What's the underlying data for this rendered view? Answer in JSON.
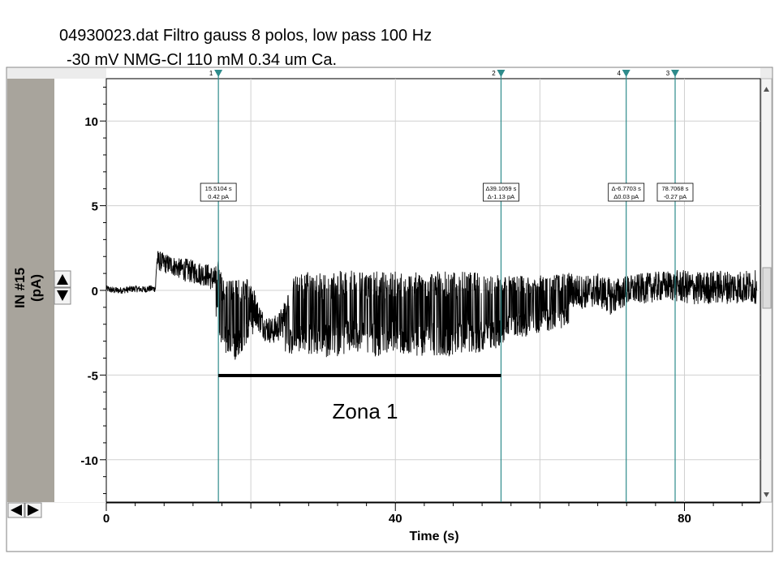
{
  "header": {
    "title_line1": "04930023.dat Filtro gauss 8 polos, low pass 100 Hz",
    "title_line2": "-30 mV NMG-Cl 110 mM 0.34 um Ca."
  },
  "axes": {
    "y_label_line1": "IN #15",
    "y_label_line2": "(pA)",
    "x_label": "Time (s)"
  },
  "annotation": {
    "zone_label": "Zona 1",
    "zone_start_s": 15.51,
    "zone_end_s": 54.62
  },
  "cursors": [
    {
      "id": "1",
      "time_s": 15.51,
      "readout_line1": "15.5104 s",
      "readout_line2": "0.42 pA"
    },
    {
      "id": "2",
      "time_s": 54.62,
      "readout_line1": "Δ39.1059 s",
      "readout_line2": "Δ-1.13 pA"
    },
    {
      "id": "4",
      "time_s": 71.94,
      "readout_line1": "Δ-6.7703 s",
      "readout_line2": "Δ0.03 pA"
    },
    {
      "id": "3",
      "time_s": 78.71,
      "readout_line1": "78.7068 s",
      "readout_line2": "-0.27 pA"
    }
  ],
  "icons": {
    "y_zoom_up": "triangle-up-icon",
    "y_zoom_down": "triangle-down-icon",
    "x_scroll_left": "triangle-left-icon",
    "x_scroll_right": "triangle-right-icon"
  },
  "colors": {
    "trace": "#000000",
    "cursor": "#2e8b8b",
    "grid": "#d0d0d0",
    "left_panel": "#a8a49c",
    "frame_bg": "#ececec"
  },
  "chart_data": {
    "type": "line",
    "title": "04930023.dat Filtro gauss 8 polos, low pass 100 Hz",
    "subtitle": "-30 mV NMG-Cl 110 mM 0.34 um Ca.",
    "xlabel": "Time (s)",
    "ylabel": "IN #15 (pA)",
    "xlim": [
      0,
      90.5
    ],
    "ylim": [
      -12.5,
      12.5
    ],
    "x_ticks": [
      0,
      40,
      80
    ],
    "y_ticks": [
      10,
      5,
      0,
      -5,
      -10
    ],
    "grid": true,
    "series": [
      {
        "x": [
          0,
          1,
          2,
          3,
          4,
          5,
          6,
          6.8,
          7,
          8,
          9,
          10,
          11,
          12,
          13,
          14,
          15,
          15.5,
          16,
          17,
          18,
          19,
          20,
          21,
          22,
          23,
          24,
          25,
          26,
          28,
          30,
          32,
          34,
          36,
          38,
          40,
          42,
          44,
          46,
          48,
          50,
          52,
          54,
          56,
          58,
          60,
          62,
          64,
          66,
          68,
          70,
          72,
          74,
          76,
          78,
          80,
          82,
          84,
          86,
          88,
          90
        ],
        "y": [
          0.1,
          0.0,
          0.0,
          0.05,
          0.1,
          0.05,
          0.1,
          0.1,
          1.8,
          1.6,
          1.5,
          1.3,
          1.2,
          1.1,
          1.0,
          0.9,
          0.6,
          0.4,
          -0.6,
          -0.8,
          -0.9,
          -0.7,
          -0.3,
          -1.5,
          -2.2,
          -2.4,
          -2.1,
          -1.4,
          -0.7,
          -0.4,
          -0.6,
          -0.5,
          -0.3,
          -0.5,
          -0.5,
          -0.4,
          -0.6,
          -0.5,
          -0.4,
          -0.5,
          -0.4,
          -0.5,
          -0.4,
          -0.3,
          -0.3,
          -0.2,
          -0.1,
          0.0,
          -0.1,
          0.0,
          -0.4,
          0.0,
          0.1,
          0.2,
          0.3,
          0.2,
          0.1,
          0.2,
          0.2,
          0.2,
          0.2
        ],
        "noise_envelope_pA": [
          0.2,
          0.2,
          0.2,
          0.2,
          0.2,
          0.2,
          0.2,
          0.2,
          0.6,
          0.6,
          0.6,
          0.6,
          0.7,
          0.7,
          0.7,
          0.7,
          0.8,
          1.6,
          1.6,
          1.7,
          1.7,
          1.5,
          1.2,
          0.9,
          0.8,
          0.8,
          0.9,
          1.2,
          1.7,
          1.8,
          1.8,
          1.8,
          1.8,
          1.8,
          1.8,
          1.7,
          1.8,
          1.8,
          1.8,
          1.8,
          1.7,
          1.7,
          1.6,
          1.3,
          1.3,
          1.2,
          1.2,
          1.1,
          1.0,
          1.0,
          1.1,
          0.9,
          0.9,
          0.9,
          0.9,
          1.0,
          1.0,
          1.0,
          1.0,
          1.0,
          1.0
        ]
      }
    ]
  }
}
